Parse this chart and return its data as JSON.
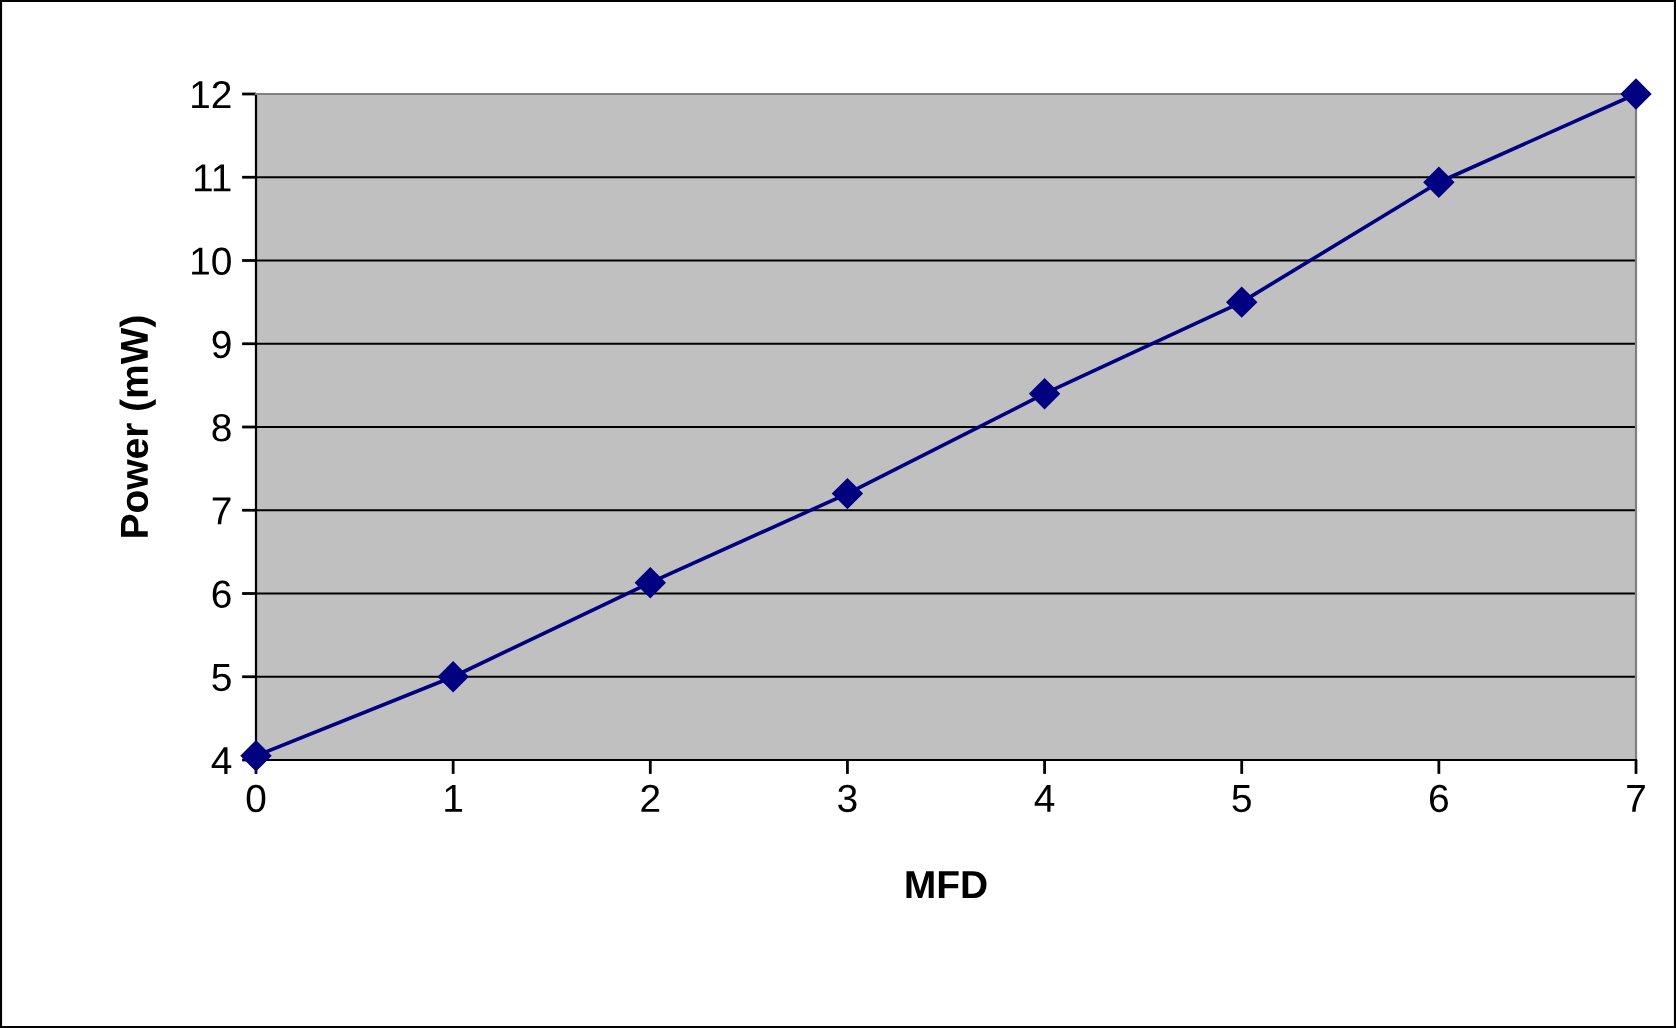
{
  "chart_data": {
    "type": "line",
    "xlabel": "MFD",
    "ylabel": "Power (mW)",
    "x": [
      0,
      1,
      2,
      3,
      4,
      5,
      6,
      7
    ],
    "series": [
      {
        "color": "#000080",
        "values": [
          4.05,
          5.0,
          6.13,
          7.2,
          8.4,
          9.5,
          10.94,
          12.0
        ]
      }
    ],
    "xlim": [
      0,
      7
    ],
    "xticks": [
      0,
      1,
      2,
      3,
      4,
      5,
      6,
      7
    ],
    "ylim": [
      4,
      12
    ],
    "yticks": [
      4,
      5,
      6,
      7,
      8,
      9,
      10,
      11,
      12
    ],
    "grid": "y",
    "marker": "diamond",
    "line_style": "solid",
    "legend": false
  }
}
